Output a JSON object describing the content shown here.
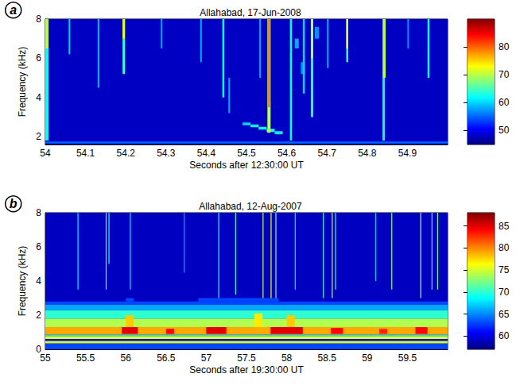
{
  "chart_data": [
    {
      "type": "heatmap",
      "label": "a",
      "title": "Allahabad, 17-Jun-2008",
      "x_label": "Seconds after 12:30:00 UT",
      "y_label": "Frequency (kHz)",
      "xlim": [
        54,
        55
      ],
      "xticks": [
        54,
        54.1,
        54.2,
        54.3,
        54.4,
        54.5,
        54.6,
        54.7,
        54.8,
        54.9
      ],
      "ylim": [
        1.6,
        8
      ],
      "yticks": [
        2,
        4,
        6,
        8
      ],
      "colorbar_range": [
        45,
        90
      ],
      "colorbar_ticks": [
        50,
        60,
        70,
        80
      ],
      "background": 48,
      "cells": [
        [
          54,
          55,
          1.65,
          1.75,
          55
        ],
        [
          54.0,
          54.008,
          1.8,
          8,
          62
        ],
        [
          54.0,
          54.008,
          6.5,
          8,
          70
        ],
        [
          54.058,
          54.062,
          6.2,
          8,
          60
        ],
        [
          54.13,
          54.134,
          4.5,
          8,
          59
        ],
        [
          54.192,
          54.198,
          5.2,
          8,
          64
        ],
        [
          54.192,
          54.198,
          7,
          8,
          72
        ],
        [
          54.287,
          54.291,
          6.5,
          8,
          58
        ],
        [
          54.385,
          54.389,
          5.8,
          8,
          58
        ],
        [
          54.44,
          54.445,
          4,
          8,
          62
        ],
        [
          54.455,
          54.459,
          3.2,
          5,
          58
        ],
        [
          54.49,
          54.51,
          2.58,
          2.72,
          60
        ],
        [
          54.51,
          54.53,
          2.48,
          2.62,
          62
        ],
        [
          54.53,
          54.55,
          2.36,
          2.5,
          62
        ],
        [
          54.55,
          54.57,
          2.24,
          2.4,
          63
        ],
        [
          54.57,
          54.59,
          2.12,
          2.28,
          61
        ],
        [
          54.532,
          54.536,
          5,
          8,
          58
        ],
        [
          54.552,
          54.56,
          2.2,
          8,
          70
        ],
        [
          54.554,
          54.558,
          3.5,
          8,
          80
        ],
        [
          54.608,
          54.613,
          1.8,
          8,
          62
        ],
        [
          54.62,
          54.63,
          6.5,
          7,
          58
        ],
        [
          54.635,
          54.645,
          5.2,
          5.8,
          57
        ],
        [
          54.67,
          54.68,
          7,
          7.6,
          57
        ],
        [
          54.64,
          54.645,
          4.2,
          8,
          60
        ],
        [
          54.66,
          54.666,
          3,
          8,
          63
        ],
        [
          54.66,
          54.666,
          6,
          8,
          70
        ],
        [
          54.7,
          54.704,
          5.5,
          8,
          58
        ],
        [
          54.748,
          54.753,
          5.8,
          8,
          64
        ],
        [
          54.748,
          54.753,
          6.5,
          8,
          72
        ],
        [
          54.838,
          54.844,
          1.8,
          8,
          62
        ],
        [
          54.84,
          54.846,
          5,
          8,
          70
        ],
        [
          54.9,
          54.904,
          6.5,
          8,
          57
        ],
        [
          54.95,
          54.955,
          5,
          8,
          62
        ]
      ]
    },
    {
      "type": "heatmap",
      "label": "b",
      "title": "Allahabad, 12-Aug-2007",
      "x_label": "Seconds after 19:30:00 UT",
      "y_label": "Frequency (kHz)",
      "xlim": [
        55,
        60
      ],
      "xticks": [
        55,
        55.5,
        56,
        56.5,
        57,
        57.5,
        58,
        58.5,
        59,
        59.5
      ],
      "ylim": [
        0,
        8
      ],
      "yticks": [
        0,
        2,
        4,
        6,
        8
      ],
      "colorbar_range": [
        57,
        88
      ],
      "colorbar_ticks": [
        60,
        65,
        70,
        75,
        80,
        85
      ],
      "background": 59,
      "cells": [
        [
          55,
          60,
          0,
          0.35,
          63
        ],
        [
          55,
          60,
          0.35,
          0.5,
          75
        ],
        [
          55,
          60,
          0.5,
          0.6,
          60
        ],
        [
          55,
          60,
          0.6,
          0.75,
          76
        ],
        [
          55,
          60,
          0.75,
          0.85,
          68
        ],
        [
          55,
          60,
          0.85,
          1.3,
          79
        ],
        [
          55,
          60,
          1.3,
          1.8,
          74
        ],
        [
          55,
          60,
          1.8,
          2.3,
          70
        ],
        [
          55,
          60,
          2.3,
          2.6,
          66
        ],
        [
          55,
          60,
          2.6,
          2.8,
          63
        ],
        [
          56.9,
          57.9,
          2.8,
          3.0,
          63
        ],
        [
          56.0,
          56.1,
          2.8,
          3.0,
          63
        ],
        [
          55.95,
          56.15,
          0.9,
          1.3,
          85
        ],
        [
          56.5,
          56.6,
          0.9,
          1.2,
          84
        ],
        [
          57.0,
          57.25,
          0.9,
          1.3,
          85
        ],
        [
          57.8,
          58.2,
          0.9,
          1.3,
          85
        ],
        [
          58.55,
          58.7,
          0.9,
          1.25,
          84
        ],
        [
          59.15,
          59.25,
          0.9,
          1.2,
          83
        ],
        [
          59.6,
          59.75,
          0.9,
          1.3,
          84
        ],
        [
          56.0,
          56.1,
          1.3,
          2.0,
          78
        ],
        [
          57.6,
          57.7,
          1.3,
          2.1,
          77
        ],
        [
          58.0,
          58.1,
          1.3,
          2.0,
          78
        ],
        [
          55.4,
          55.412,
          3.5,
          8,
          68
        ],
        [
          55.75,
          55.762,
          3.5,
          8,
          72
        ],
        [
          55.785,
          55.797,
          5,
          8,
          70
        ],
        [
          56.05,
          56.062,
          3.5,
          8,
          68
        ],
        [
          56.72,
          56.732,
          4.5,
          8,
          66
        ],
        [
          57.15,
          57.162,
          3,
          8,
          70
        ],
        [
          57.36,
          57.372,
          3.2,
          8,
          70
        ],
        [
          57.7,
          57.712,
          3,
          8,
          74
        ],
        [
          57.8,
          57.812,
          3,
          8,
          76
        ],
        [
          57.86,
          57.872,
          3,
          8,
          72
        ],
        [
          58.1,
          58.112,
          3.5,
          8,
          68
        ],
        [
          58.45,
          58.462,
          3,
          8,
          70
        ],
        [
          58.56,
          58.572,
          3,
          8,
          74
        ],
        [
          58.6,
          58.612,
          3.5,
          8,
          70
        ],
        [
          59.1,
          59.112,
          4,
          8,
          67
        ],
        [
          59.3,
          59.312,
          3.5,
          8,
          72
        ],
        [
          59.66,
          59.672,
          3,
          8,
          74
        ],
        [
          59.8,
          59.812,
          3.5,
          8,
          70
        ],
        [
          59.87,
          59.882,
          3.5,
          8,
          72
        ]
      ]
    }
  ]
}
